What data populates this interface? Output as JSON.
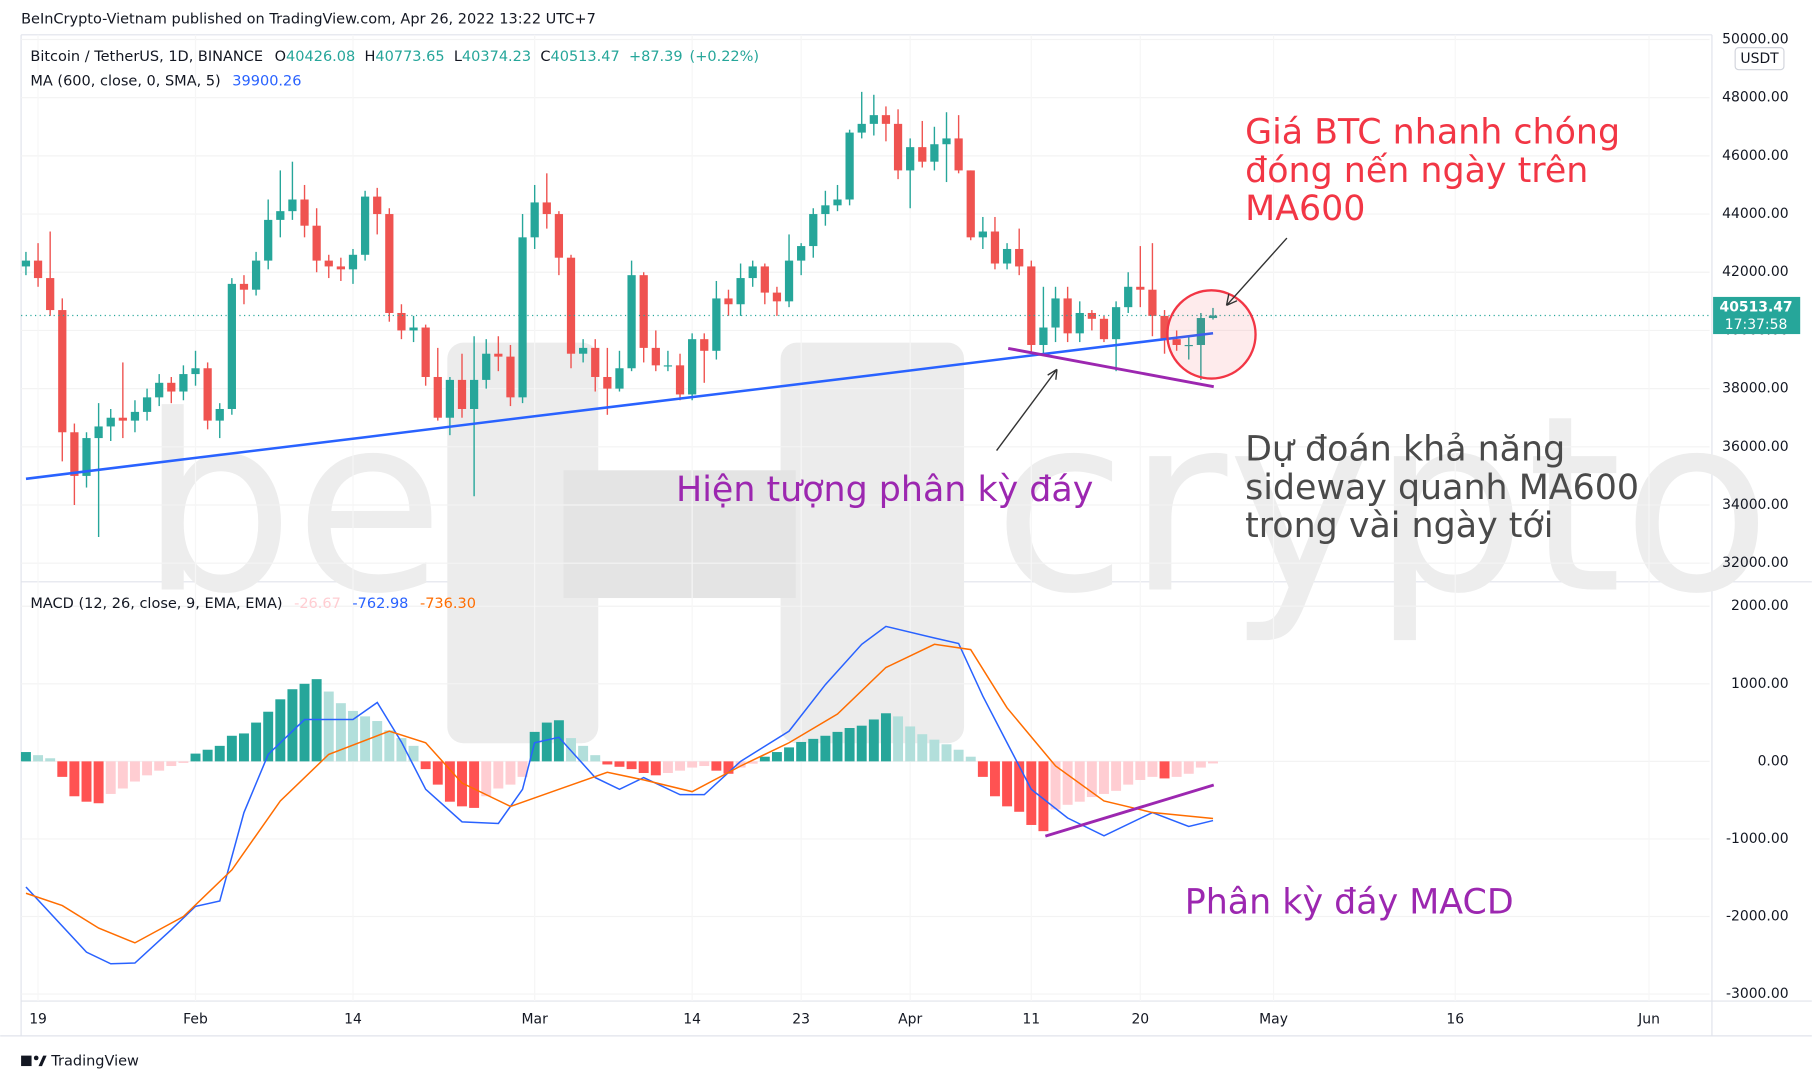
{
  "header": {
    "publisher": "BeInCrypto-Vietnam published on TradingView.com, Apr 26, 2022 13:22 UTC+7"
  },
  "footer": {
    "brand": "TradingView"
  },
  "watermark": [
    "be",
    "crypto"
  ],
  "chart_data": {
    "type": "candlestick",
    "symbol": "Bitcoin / TetherUS, 1D, BINANCE",
    "ohlc_labels": [
      "O",
      "H",
      "L",
      "C"
    ],
    "change": "+87.39",
    "change_pct": "(+0.22%)",
    "up_color": "#26a69a",
    "down_color": "#ef5350",
    "ohlc": [
      [
        42200,
        42700,
        41900,
        42400
      ],
      [
        42400,
        43000,
        41500,
        41800
      ],
      [
        41800,
        43400,
        40500,
        40700
      ],
      [
        40700,
        41100,
        35500,
        36500
      ],
      [
        36500,
        36800,
        34000,
        35000
      ],
      [
        35000,
        36500,
        34600,
        36300
      ],
      [
        36300,
        37500,
        32900,
        36700
      ],
      [
        36700,
        37300,
        36200,
        37000
      ],
      [
        37000,
        38900,
        36300,
        36900
      ],
      [
        36900,
        37600,
        36500,
        37200
      ],
      [
        37200,
        38000,
        36900,
        37700
      ],
      [
        37700,
        38500,
        37400,
        38200
      ],
      [
        38200,
        38400,
        37500,
        37900
      ],
      [
        37900,
        38800,
        37600,
        38500
      ],
      [
        38500,
        39300,
        38100,
        38700
      ],
      [
        38700,
        38900,
        36600,
        36900
      ],
      [
        36900,
        37500,
        36300,
        37300
      ],
      [
        37300,
        41800,
        37100,
        41600
      ],
      [
        41600,
        41900,
        40900,
        41400
      ],
      [
        41400,
        42700,
        41200,
        42400
      ],
      [
        42400,
        44500,
        42100,
        43800
      ],
      [
        43800,
        45500,
        43200,
        44100
      ],
      [
        44100,
        45800,
        43800,
        44500
      ],
      [
        44500,
        45000,
        43200,
        43600
      ],
      [
        43600,
        44200,
        42000,
        42400
      ],
      [
        42400,
        42600,
        41800,
        42200
      ],
      [
        42200,
        42500,
        41700,
        42100
      ],
      [
        42100,
        42800,
        41600,
        42600
      ],
      [
        42600,
        44800,
        42400,
        44600
      ],
      [
        44600,
        44900,
        43300,
        44000
      ],
      [
        44000,
        44200,
        40300,
        40600
      ],
      [
        40600,
        40900,
        39700,
        40000
      ],
      [
        40000,
        40500,
        39600,
        40100
      ],
      [
        40100,
        40200,
        38100,
        38400
      ],
      [
        38400,
        39400,
        36900,
        37000
      ],
      [
        37000,
        38400,
        36400,
        38300
      ],
      [
        38300,
        39200,
        37000,
        37300
      ],
      [
        37300,
        39800,
        34300,
        38300
      ],
      [
        38300,
        39700,
        38000,
        39200
      ],
      [
        39200,
        39800,
        38600,
        39100
      ],
      [
        39100,
        39500,
        37400,
        37700
      ],
      [
        37700,
        44000,
        37500,
        43200
      ],
      [
        43200,
        45000,
        42800,
        44400
      ],
      [
        44400,
        45400,
        43500,
        44000
      ],
      [
        44000,
        44100,
        41900,
        42500
      ],
      [
        42500,
        42600,
        38700,
        39200
      ],
      [
        39200,
        39700,
        38900,
        39400
      ],
      [
        39400,
        39700,
        37900,
        38400
      ],
      [
        38400,
        39400,
        37100,
        38000
      ],
      [
        38000,
        39300,
        37900,
        38700
      ],
      [
        38700,
        42400,
        38600,
        41900
      ],
      [
        41900,
        42000,
        38900,
        39400
      ],
      [
        39400,
        40000,
        38600,
        38800
      ],
      [
        38800,
        39300,
        38600,
        38800
      ],
      [
        38800,
        39200,
        37600,
        37800
      ],
      [
        37800,
        39900,
        37600,
        39700
      ],
      [
        39700,
        39900,
        38200,
        39300
      ],
      [
        39300,
        41700,
        39000,
        41100
      ],
      [
        41100,
        41400,
        40500,
        40900
      ],
      [
        40900,
        42300,
        40500,
        41800
      ],
      [
        41800,
        42400,
        41500,
        42200
      ],
      [
        42200,
        42300,
        40900,
        41300
      ],
      [
        41300,
        41500,
        40500,
        41000
      ],
      [
        41000,
        43300,
        40800,
        42400
      ],
      [
        42400,
        43000,
        41900,
        42900
      ],
      [
        42900,
        44200,
        42500,
        44000
      ],
      [
        44000,
        44800,
        43600,
        44300
      ],
      [
        44300,
        45000,
        44100,
        44500
      ],
      [
        44500,
        46900,
        44300,
        46800
      ],
      [
        46800,
        48200,
        46600,
        47100
      ],
      [
        47100,
        48100,
        46700,
        47400
      ],
      [
        47400,
        47700,
        46500,
        47100
      ],
      [
        47100,
        47600,
        45200,
        45500
      ],
      [
        45500,
        46600,
        44200,
        46300
      ],
      [
        46300,
        47200,
        45600,
        45800
      ],
      [
        45800,
        47000,
        45500,
        46400
      ],
      [
        46400,
        47500,
        45100,
        46600
      ],
      [
        46600,
        47400,
        45400,
        45500
      ],
      [
        45500,
        45500,
        43100,
        43200
      ],
      [
        43200,
        43900,
        42800,
        43400
      ],
      [
        43400,
        43900,
        42100,
        42300
      ],
      [
        42300,
        43000,
        42100,
        42800
      ],
      [
        42800,
        43500,
        41900,
        42200
      ],
      [
        42200,
        42400,
        39200,
        39500
      ],
      [
        39500,
        41500,
        39200,
        40100
      ],
      [
        40100,
        41500,
        39600,
        41100
      ],
      [
        41100,
        41500,
        39600,
        39900
      ],
      [
        39900,
        41000,
        39600,
        40600
      ],
      [
        40600,
        40700,
        40000,
        40400
      ],
      [
        40400,
        40500,
        39600,
        39700
      ],
      [
        39700,
        41000,
        38600,
        40800
      ],
      [
        40800,
        42000,
        40600,
        41500
      ],
      [
        41500,
        42900,
        40800,
        41400
      ],
      [
        41400,
        43000,
        39800,
        40500
      ],
      [
        40500,
        40700,
        39200,
        39700
      ],
      [
        39700,
        40000,
        39300,
        39500
      ],
      [
        39500,
        39800,
        39000,
        39500
      ],
      [
        39500,
        40600,
        38300,
        40426.08
      ],
      [
        40426.08,
        40773.65,
        40374.23,
        40513.47
      ]
    ],
    "ma": {
      "name": "MA (600, close, 0, SMA, 5)",
      "color": "#2962ff",
      "x": [
        0,
        14,
        28,
        42,
        56,
        70,
        84,
        98
      ],
      "values": [
        34900,
        35620,
        36330,
        37050,
        37760,
        38470,
        39190,
        39900.26
      ]
    },
    "xlim": [
      -0.4,
      139
    ],
    "xticks": [
      {
        "value": 1,
        "label": "19"
      },
      {
        "value": 14,
        "label": "Feb"
      },
      {
        "value": 27,
        "label": "14"
      },
      {
        "value": 42,
        "label": "Mar"
      },
      {
        "value": 55,
        "label": "14"
      },
      {
        "value": 64,
        "label": "23"
      },
      {
        "value": 73,
        "label": "Apr"
      },
      {
        "value": 83,
        "label": "11"
      },
      {
        "value": 92,
        "label": "20"
      },
      {
        "value": 103,
        "label": "May"
      },
      {
        "value": 118,
        "label": "16"
      },
      {
        "value": 134,
        "label": "Jun"
      }
    ],
    "ylim": [
      31400,
      50160
    ],
    "yticks": [
      {
        "value": 32000,
        "label": "32000.00"
      },
      {
        "value": 34000,
        "label": "34000.00"
      },
      {
        "value": 36000,
        "label": "36000.00"
      },
      {
        "value": 38000,
        "label": "38000.00"
      },
      {
        "value": 40000,
        "label": "40000.00"
      },
      {
        "value": 42000,
        "label": "42000.00"
      },
      {
        "value": 44000,
        "label": "44000.00"
      },
      {
        "value": 46000,
        "label": "46000.00"
      },
      {
        "value": 48000,
        "label": "48000.00"
      },
      {
        "value": 50000,
        "label": "50000.00"
      }
    ],
    "currency": "USDT",
    "countdown": "17:37:58",
    "macd_panel": {
      "name": "MACD (12, 26, close, 9, EMA, EMA)",
      "histogram": {
        "colors": {
          "up_strong": "#26a69a",
          "up_weak": "#b2dfdb",
          "down_strong": "#ff5252",
          "down_weak": "#ffcdd2"
        },
        "values": [
          120,
          80,
          40,
          -200,
          -450,
          -520,
          -540,
          -420,
          -350,
          -260,
          -180,
          -120,
          -60,
          -20,
          100,
          150,
          200,
          330,
          360,
          500,
          640,
          800,
          930,
          1000,
          1060,
          900,
          750,
          650,
          580,
          520,
          400,
          300,
          200,
          -100,
          -300,
          -520,
          -580,
          -600,
          -450,
          -350,
          -300,
          -200,
          380,
          500,
          530,
          300,
          200,
          80,
          -40,
          -70,
          -100,
          -150,
          -180,
          -150,
          -120,
          -80,
          -60,
          -120,
          -160,
          -80,
          -30,
          60,
          120,
          180,
          250,
          290,
          330,
          380,
          430,
          460,
          540,
          620,
          580,
          450,
          350,
          280,
          220,
          150,
          60,
          -200,
          -450,
          -580,
          -650,
          -820,
          -900,
          -620,
          -560,
          -520,
          -460,
          -420,
          -380,
          -300,
          -240,
          -200,
          -220,
          -200,
          -160,
          -80,
          -26.67
        ]
      },
      "macd": {
        "color": "#2962ff",
        "x": [
          0,
          5,
          7,
          9,
          12,
          14,
          16,
          18,
          20,
          23,
          27,
          29,
          31,
          33,
          36,
          39,
          41,
          42,
          44,
          47,
          49,
          51,
          54,
          56,
          59,
          63,
          66,
          69,
          71,
          75,
          77,
          79,
          81,
          83,
          86,
          89,
          93,
          96,
          98
        ],
        "values": [
          -1620,
          -2460,
          -2610,
          -2600,
          -2170,
          -1870,
          -1800,
          -660,
          90,
          540,
          540,
          760,
          250,
          -360,
          -780,
          -800,
          -360,
          240,
          310,
          -210,
          -360,
          -210,
          -430,
          -430,
          0,
          390,
          990,
          1510,
          1740,
          1590,
          1520,
          840,
          240,
          -360,
          -730,
          -960,
          -660,
          -840,
          -762.98
        ]
      },
      "signal": {
        "color": "#ff6d00",
        "legend_value": "-736.30",
        "x": [
          0,
          3,
          6,
          9,
          13,
          17,
          21,
          25,
          30,
          33,
          36,
          40,
          44,
          48,
          51,
          55,
          59,
          63,
          67,
          71,
          75,
          78,
          81,
          85,
          89,
          93,
          98
        ],
        "values": [
          -1700,
          -1860,
          -2150,
          -2340,
          -2000,
          -1400,
          -510,
          90,
          390,
          240,
          -280,
          -580,
          -360,
          -140,
          -240,
          -390,
          -60,
          240,
          610,
          1210,
          1510,
          1440,
          690,
          -60,
          -510,
          -660,
          -736.3
        ]
      },
      "ylim": [
        -3090,
        2300
      ],
      "yticks": [
        {
          "value": 2000,
          "label": "2000.00"
        },
        {
          "value": 1000,
          "label": "1000.00"
        },
        {
          "value": 0,
          "label": "0.00"
        },
        {
          "value": -1000,
          "label": "-1000.00"
        },
        {
          "value": -2000,
          "label": "-2000.00"
        },
        {
          "value": -3000,
          "label": "-3000.00"
        }
      ]
    }
  },
  "annotations": [
    {
      "lines": [
        "Giá BTC nhanh chóng",
        "đóng nến ngày trên",
        "MA600"
      ],
      "color": "#f23645"
    },
    {
      "lines": [
        "Dự đoán khả năng",
        "sideway quanh MA600",
        "trong vài ngày tới"
      ],
      "color": "#4a4a4a"
    },
    {
      "lines": [
        "Hiện tượng phân kỳ đáy"
      ],
      "color": "#9c27b0"
    },
    {
      "lines": [
        "Phân kỳ đáy MACD"
      ],
      "color": "#9c27b0"
    }
  ]
}
